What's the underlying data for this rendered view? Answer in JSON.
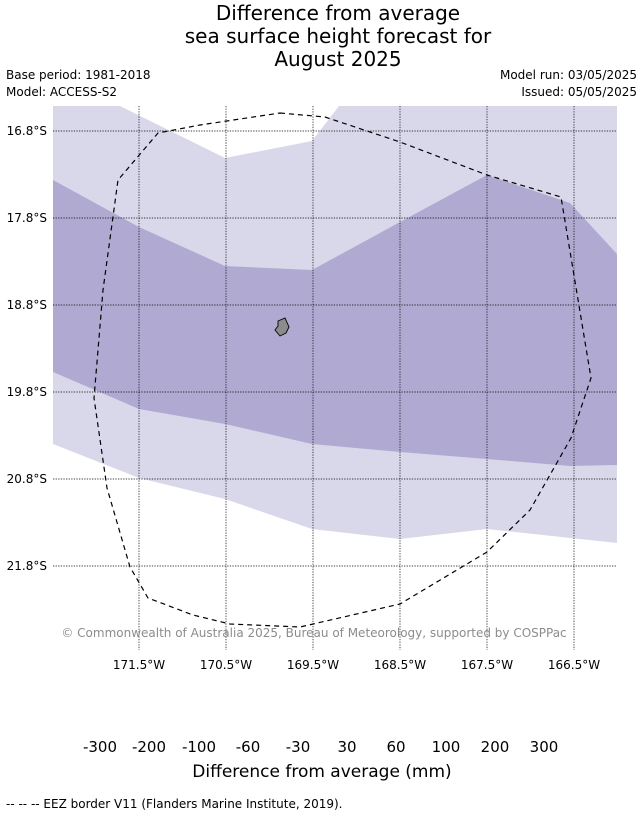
{
  "title": {
    "line1": "Difference from average",
    "line2": "sea surface height forecast for",
    "line3": "August 2025"
  },
  "meta": {
    "base_period": "Base period: 1981-2018",
    "model": "Model: ACCESS-S2",
    "model_run": "Model run: 03/05/2025",
    "issued": "Issued: 05/05/2025"
  },
  "map": {
    "lat_labels": [
      "16.8°S",
      "17.8°S",
      "18.8°S",
      "19.8°S",
      "20.8°S",
      "21.8°S"
    ],
    "lon_labels": [
      "171.5°W",
      "170.5°W",
      "169.5°W",
      "168.5°W",
      "167.5°W",
      "166.5°W"
    ],
    "copyright": "© Commonwealth of Australia 2025, Bureau of Meteorology, supported by COSPPac",
    "colors": {
      "band_light": "#d8d8ea",
      "band_mid": "#b0aad2",
      "island": "#8c8c8c"
    }
  },
  "colorbar": {
    "labels": [
      "-300",
      "-200",
      "-100",
      "-60",
      "-30",
      "30",
      "60",
      "100",
      "200",
      "300"
    ],
    "colors": [
      "#5c2391",
      "#8073b1",
      "#b0aad2",
      "#d8d8ea",
      "#ffffff",
      "#fee0b6",
      "#fdb863",
      "#e08214",
      "#b35806"
    ],
    "under_color": "#2d004b",
    "over_color": "#7f3b08",
    "title": "Difference from average (mm)"
  },
  "footnote": "-- -- -- EEZ border V11 (Flanders Marine Institute, 2019)."
}
